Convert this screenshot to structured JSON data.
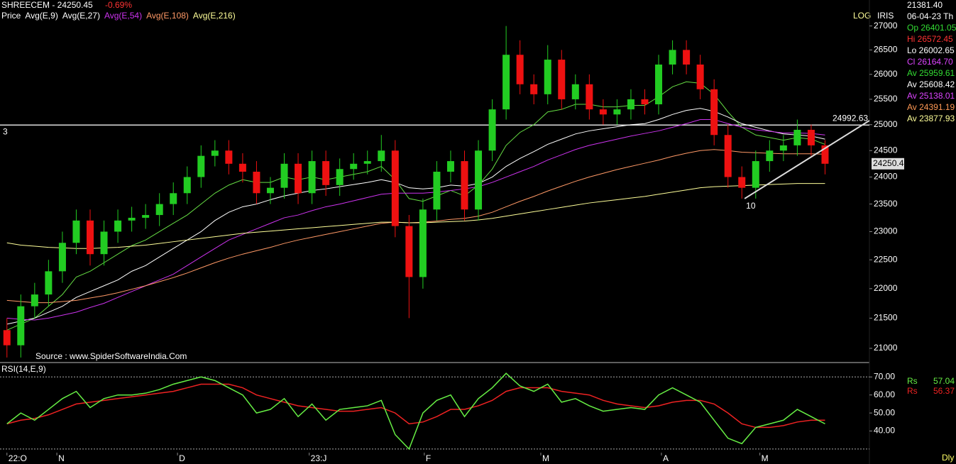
{
  "header": {
    "title": "SHREECEM - 24250.45",
    "change": "-0.69%",
    "log_label": "LOG",
    "iris_label": "IRIS",
    "source": "Source : www.SpiderSoftwareIndia.Com",
    "period": "Dly"
  },
  "info_panel": [
    {
      "text": "21381.40",
      "color": "#ffffff"
    },
    {
      "text": "06-04-23 Th",
      "color": "#ffffff"
    },
    {
      "text": "Op 26401.05",
      "color": "#33dd33"
    },
    {
      "text": "Hi 26572.45",
      "color": "#ff3333"
    },
    {
      "text": "Lo 26002.65",
      "color": "#ffffff"
    },
    {
      "text": "Cl 26164.70",
      "color": "#dd44ff"
    },
    {
      "text": "Av 25959.61",
      "color": "#33dd33"
    },
    {
      "text": "Av 25608.42",
      "color": "#ffffff"
    },
    {
      "text": "Av 25138.01",
      "color": "#dd44ff"
    },
    {
      "text": "Av 24391.19",
      "color": "#ff9955"
    },
    {
      "text": "Av 23877.93",
      "color": "#ffff99"
    }
  ],
  "chart_data": [
    {
      "type": "candlestick",
      "legend_label": "Price",
      "up_color": "#22cc22",
      "down_color": "#ee1111",
      "log": true,
      "xlim": [
        -0.5,
        62.2
      ],
      "ylim": [
        20780,
        27400
      ],
      "yticks": [
        21000,
        21500,
        22000,
        22500,
        23000,
        23500,
        24000,
        24500,
        25000,
        25500,
        26000,
        26500,
        27000
      ],
      "xticks": [
        {
          "value": 0,
          "label": "22:O"
        },
        {
          "value": 3.6,
          "label": "N"
        },
        {
          "value": 12.3,
          "label": "D"
        },
        {
          "value": 21.8,
          "label": "23:J"
        },
        {
          "value": 30.1,
          "label": "F"
        },
        {
          "value": 38.5,
          "label": "M"
        },
        {
          "value": 47.2,
          "label": "A"
        },
        {
          "value": 54.3,
          "label": "M"
        }
      ],
      "open": [
        21300,
        21050,
        21700,
        21900,
        22300,
        22800,
        23200,
        22600,
        23000,
        23200,
        23250,
        23300,
        23500,
        23700,
        24000,
        24400,
        24500,
        24250,
        24100,
        23700,
        23800,
        24250,
        23700,
        24300,
        23850,
        24150,
        24250,
        24300,
        24500,
        23100,
        22200,
        23400,
        24100,
        24300,
        23400,
        24500,
        25300,
        26400,
        25800,
        25600,
        26300,
        25500,
        25800,
        25300,
        25200,
        25300,
        25500,
        25400,
        26200,
        26500,
        26200,
        25700,
        24800,
        24000,
        23800,
        24300,
        24500,
        24600,
        24900,
        24600
      ],
      "high": [
        21500,
        21900,
        22100,
        22500,
        23000,
        23400,
        23400,
        23200,
        23400,
        23450,
        23500,
        23700,
        23900,
        24200,
        24600,
        24700,
        24700,
        24450,
        24300,
        24000,
        24450,
        24450,
        24500,
        24500,
        24350,
        24450,
        24500,
        24800,
        24700,
        23300,
        23600,
        24300,
        24500,
        24500,
        24700,
        25500,
        27000,
        26700,
        26000,
        26600,
        26500,
        26000,
        26000,
        25500,
        25500,
        25700,
        25700,
        26400,
        26700,
        26700,
        26400,
        25900,
        25000,
        24200,
        24500,
        24700,
        24800,
        25100,
        25000,
        24700
      ],
      "low": [
        20850,
        20850,
        21500,
        21700,
        22100,
        22600,
        22400,
        22400,
        22800,
        23000,
        23050,
        23100,
        23300,
        23500,
        23800,
        24200,
        24050,
        23900,
        23500,
        23500,
        23600,
        23500,
        23500,
        23650,
        23650,
        23950,
        24050,
        24100,
        22900,
        21500,
        22000,
        23200,
        23900,
        23200,
        23200,
        24300,
        25100,
        25600,
        25400,
        25400,
        25300,
        25300,
        25100,
        25000,
        25000,
        25100,
        25200,
        25200,
        26000,
        26000,
        25500,
        24600,
        23800,
        23600,
        23600,
        24100,
        24300,
        24400,
        24400,
        24050
      ],
      "close": [
        21050,
        21700,
        21900,
        22300,
        22800,
        23200,
        22600,
        23000,
        23200,
        23250,
        23300,
        23500,
        23700,
        24000,
        24400,
        24500,
        24250,
        24100,
        23700,
        23800,
        24250,
        23700,
        24300,
        23850,
        24150,
        24250,
        24300,
        24500,
        23100,
        22200,
        23400,
        24100,
        24300,
        23400,
        24500,
        25300,
        26400,
        25800,
        25600,
        26300,
        25500,
        25800,
        25300,
        25200,
        25300,
        25500,
        25400,
        26200,
        26500,
        26200,
        25700,
        24800,
        24000,
        23800,
        24300,
        24500,
        24600,
        24900,
        24600,
        24250
      ],
      "series": [
        {
          "name": "Avg(E,9)",
          "color": "#66dd44",
          "values": [
            21300,
            21400,
            21500,
            21700,
            21900,
            22200,
            22300,
            22450,
            22600,
            22750,
            22850,
            23000,
            23150,
            23300,
            23500,
            23700,
            23850,
            23950,
            23900,
            23900,
            24000,
            23950,
            24000,
            23950,
            24000,
            24050,
            24100,
            24200,
            23950,
            23600,
            23550,
            23650,
            23750,
            23650,
            23850,
            24150,
            24600,
            24850,
            25000,
            25250,
            25300,
            25400,
            25400,
            25350,
            25350,
            25380,
            25380,
            25550,
            25750,
            25850,
            25820,
            25600,
            25250,
            24950,
            24800,
            24750,
            24700,
            24750,
            24720,
            24620
          ]
        },
        {
          "name": "Avg(E,27)",
          "color": "#ffffff",
          "values": [
            21400,
            21450,
            21500,
            21600,
            21700,
            21850,
            21950,
            22050,
            22150,
            22300,
            22400,
            22550,
            22700,
            22850,
            23000,
            23200,
            23350,
            23450,
            23500,
            23580,
            23650,
            23700,
            23750,
            23780,
            23820,
            23860,
            23900,
            23950,
            23900,
            23800,
            23780,
            23800,
            23850,
            23830,
            23880,
            24000,
            24200,
            24350,
            24480,
            24620,
            24720,
            24820,
            24880,
            24920,
            24960,
            25000,
            25020,
            25100,
            25200,
            25280,
            25320,
            25260,
            25150,
            25020,
            24950,
            24880,
            24820,
            24800,
            24780,
            24720
          ]
        },
        {
          "name": "Avg(E,54)",
          "color": "#cc33ee",
          "values": [
            21500,
            21480,
            21470,
            21500,
            21550,
            21600,
            21680,
            21750,
            21850,
            21950,
            22050,
            22150,
            22250,
            22400,
            22550,
            22700,
            22850,
            22950,
            23050,
            23150,
            23250,
            23300,
            23380,
            23450,
            23500,
            23560,
            23620,
            23680,
            23700,
            23700,
            23700,
            23720,
            23750,
            23780,
            23820,
            23900,
            24000,
            24100,
            24200,
            24320,
            24420,
            24520,
            24600,
            24660,
            24720,
            24780,
            24830,
            24880,
            24950,
            25020,
            25100,
            25100,
            25020,
            24950,
            24900,
            24870,
            24840,
            24840,
            24830,
            24800
          ]
        },
        {
          "name": "Avg(E,108)",
          "color": "#ff9966",
          "values": [
            21800,
            21780,
            21760,
            21760,
            21780,
            21800,
            21840,
            21880,
            21930,
            21990,
            22050,
            22120,
            22190,
            22270,
            22360,
            22450,
            22530,
            22600,
            22660,
            22720,
            22790,
            22850,
            22900,
            22950,
            23000,
            23050,
            23100,
            23150,
            23170,
            23160,
            23170,
            23190,
            23220,
            23240,
            23280,
            23350,
            23450,
            23550,
            23640,
            23740,
            23830,
            23920,
            24000,
            24070,
            24140,
            24200,
            24260,
            24320,
            24390,
            24450,
            24500,
            24520,
            24500,
            24470,
            24460,
            24450,
            24440,
            24440,
            24440,
            24430
          ]
        },
        {
          "name": "Avg(E,216)",
          "color": "#ffff99",
          "values": [
            22800,
            22760,
            22740,
            22720,
            22710,
            22700,
            22700,
            22710,
            22720,
            22740,
            22760,
            22790,
            22820,
            22850,
            22880,
            22910,
            22940,
            22970,
            22990,
            23010,
            23030,
            23050,
            23070,
            23090,
            23110,
            23130,
            23150,
            23170,
            23170,
            23160,
            23160,
            23170,
            23180,
            23190,
            23210,
            23240,
            23280,
            23320,
            23360,
            23400,
            23440,
            23480,
            23520,
            23550,
            23580,
            23610,
            23640,
            23680,
            23720,
            23760,
            23800,
            23820,
            23830,
            23840,
            23850,
            23860,
            23870,
            23880,
            23880,
            23880
          ]
        }
      ],
      "hline": {
        "value": 24992.63,
        "label": "24992.63"
      },
      "trendline": {
        "x": [
          53.2,
          62.2
        ],
        "y": [
          23600,
          25080
        ]
      },
      "annotations": [
        "3",
        "10"
      ],
      "last_price_label": "24250.4"
    },
    {
      "type": "line",
      "title": "RSI(14,E,9)",
      "xlim": [
        -0.5,
        62.2
      ],
      "ylim": [
        28,
        77.6
      ],
      "yticks": [
        {
          "value": 40,
          "label": "40.00"
        },
        {
          "value": 50,
          "label": "50.00"
        },
        {
          "value": 60,
          "label": "60.00"
        },
        {
          "value": 70,
          "label": "70.00"
        }
      ],
      "levels": [
        70,
        30
      ],
      "series": [
        {
          "name": "Rs",
          "color": "#66ee44",
          "value_label": "57.04",
          "values": [
            44,
            50,
            46,
            52,
            58,
            62,
            53,
            58,
            60,
            60,
            61,
            63,
            66,
            68,
            70,
            68,
            64,
            60,
            50,
            52,
            58,
            48,
            55,
            46,
            52,
            53,
            54,
            57,
            38,
            30,
            50,
            57,
            60,
            48,
            58,
            64,
            72,
            65,
            62,
            66,
            56,
            58,
            54,
            51,
            52,
            53,
            52,
            60,
            64,
            60,
            56,
            46,
            36,
            33,
            42,
            44,
            46,
            52,
            48,
            44
          ]
        },
        {
          "name": "Rs",
          "color": "#ee2222",
          "value_label": "56.37",
          "values": [
            44,
            46,
            47,
            49,
            52,
            55,
            56,
            57,
            58,
            59,
            60,
            61,
            62,
            64,
            66,
            66,
            66,
            64,
            60,
            58,
            56,
            54,
            53,
            52,
            51,
            51,
            52,
            53,
            50,
            44,
            45,
            48,
            52,
            52,
            54,
            57,
            62,
            64,
            64,
            64,
            62,
            61,
            60,
            57,
            55,
            54,
            53,
            54,
            56,
            57,
            57,
            55,
            50,
            44,
            42,
            42,
            43,
            45,
            46,
            46
          ]
        }
      ]
    }
  ]
}
